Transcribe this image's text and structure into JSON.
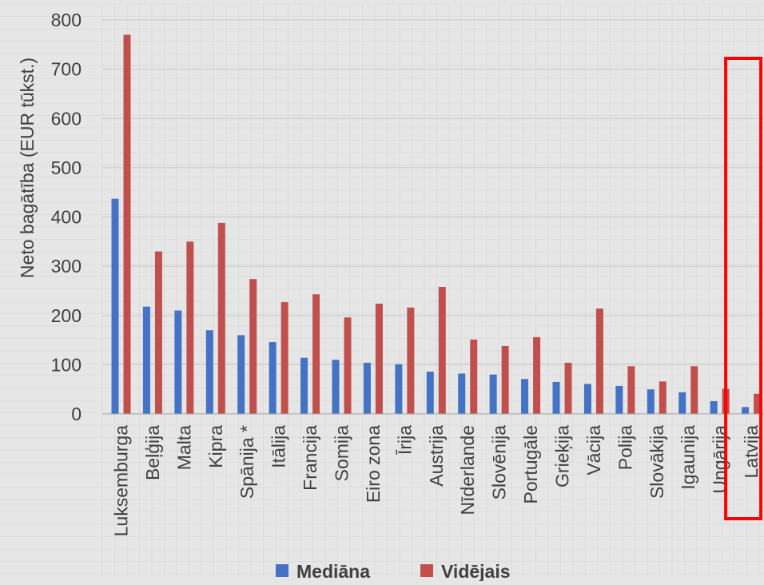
{
  "chart_data": {
    "type": "bar",
    "title": "",
    "ylabel": "Neto bagātība (EUR tūkst.)",
    "xlabel": "",
    "ylim": [
      0,
      800
    ],
    "yticks": [
      0,
      100,
      200,
      300,
      400,
      500,
      600,
      700,
      800
    ],
    "grid": true,
    "legend_position": "bottom",
    "categories": [
      "Luksemburga",
      "Beļģija",
      "Malta",
      "Kipra",
      "Spānija *",
      "Itālija",
      "Francija",
      "Somija",
      "Eiro zona",
      "Īrija",
      "Austrija",
      "Nīderlande",
      "Slovēnija",
      "Portugāle",
      "Grieķija",
      "Vācija",
      "Polija",
      "Slovākija",
      "Igaunija",
      "Ungārija",
      "Latvija"
    ],
    "series": [
      {
        "name": "Mediāna",
        "color": "#4472c4",
        "values": [
          437,
          218,
          210,
          170,
          160,
          146,
          114,
          110,
          104,
          101,
          86,
          82,
          80,
          71,
          65,
          61,
          57,
          50,
          44,
          26,
          14
        ]
      },
      {
        "name": "Vidējais",
        "color": "#c0504d",
        "values": [
          770,
          330,
          350,
          388,
          274,
          227,
          243,
          196,
          224,
          216,
          258,
          151,
          138,
          156,
          104,
          214,
          97,
          66,
          97,
          51,
          41
        ]
      }
    ],
    "highlight": {
      "category": "Latvija",
      "color": "#ff0000"
    }
  }
}
